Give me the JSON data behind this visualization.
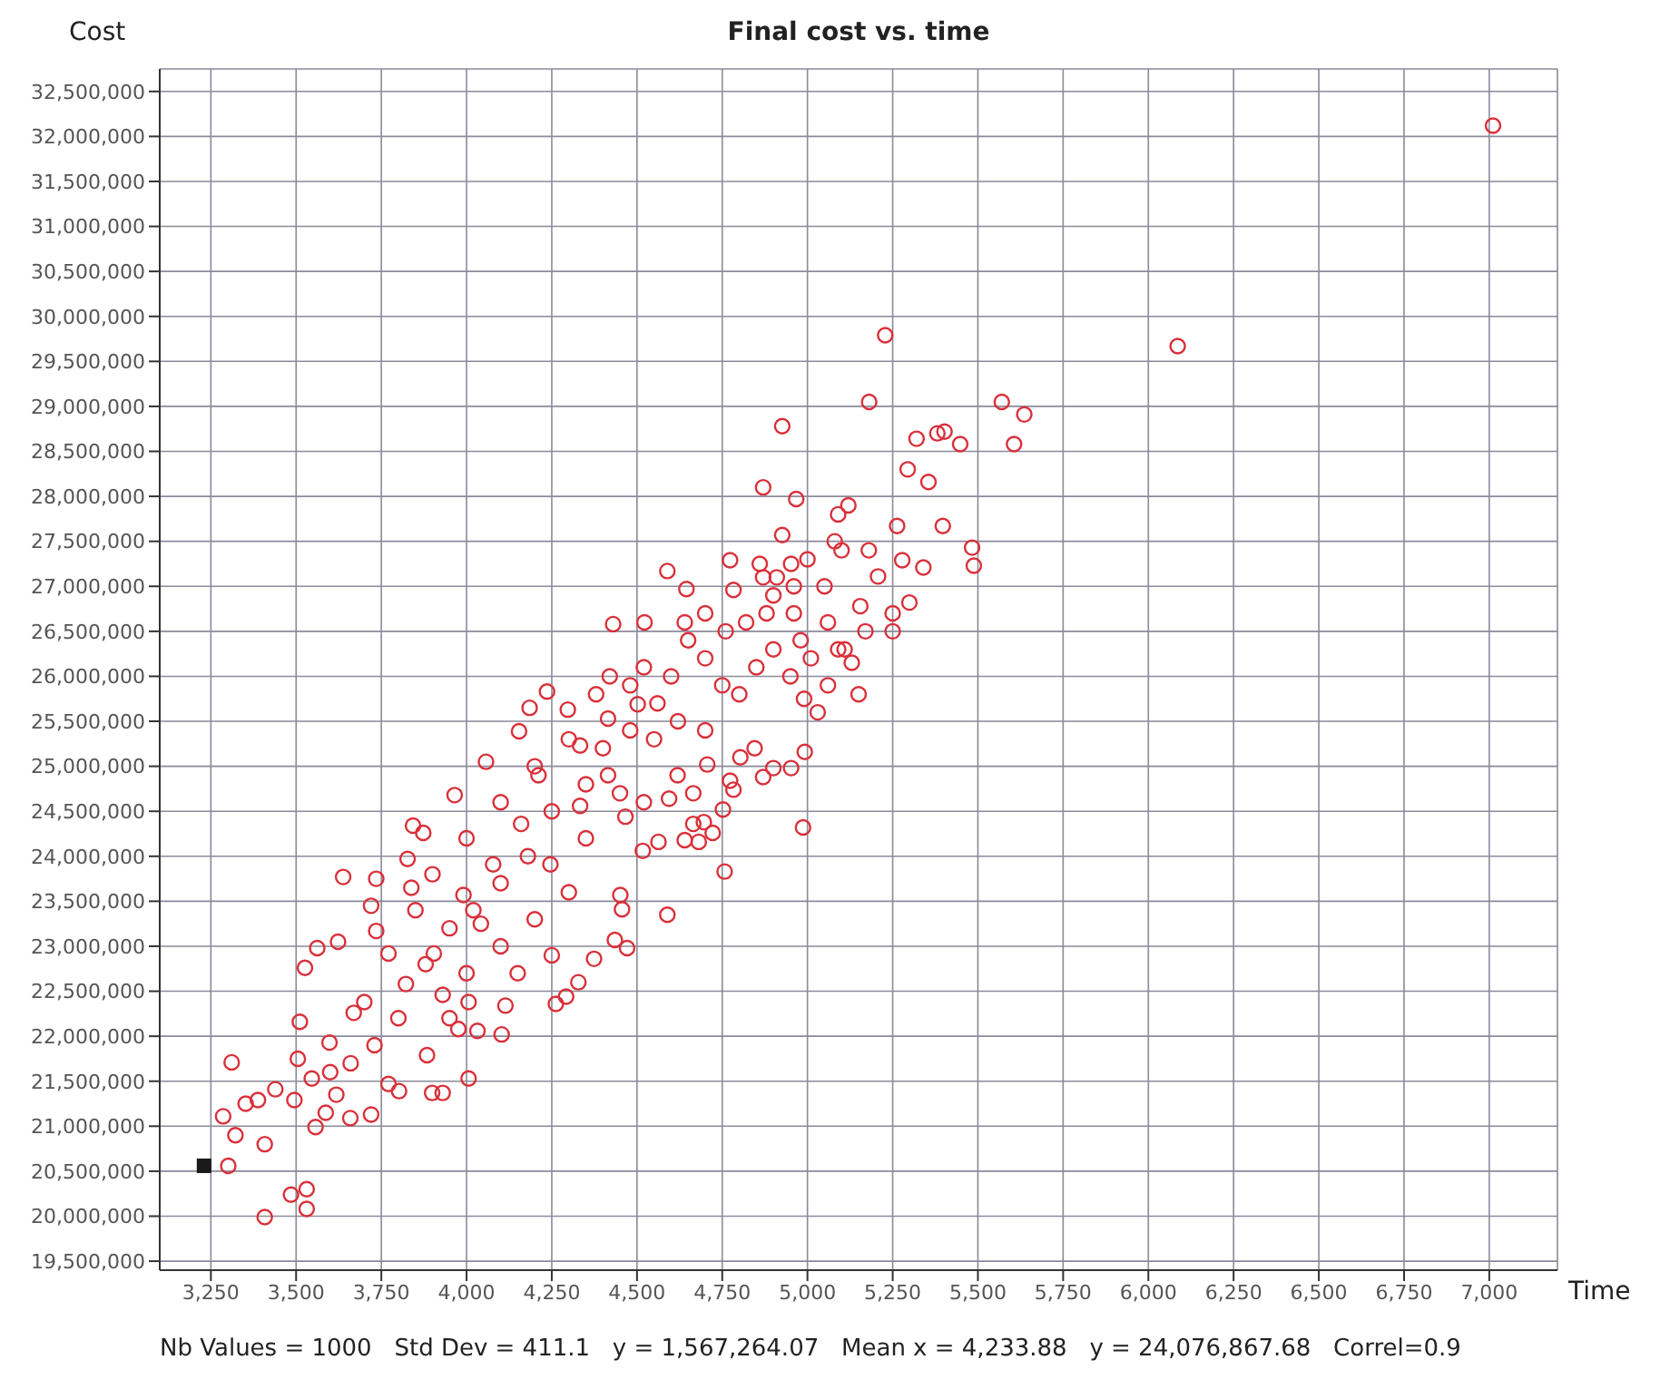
{
  "chart_data": {
    "type": "scatter",
    "title": "Final cost vs. time",
    "xlabel": "Time",
    "ylabel": "Cost",
    "annotations": [
      "Nb Values = 1000   Std Dev = 411.1   y = 1,567,264.07   Mean x = 4,233.88   y = 24,076,867.68   Correl=0.9"
    ],
    "xlim": [
      3100,
      7200
    ],
    "xticks": [
      {
        "value": 3250,
        "label": "3,250"
      },
      {
        "value": 3500,
        "label": "3,500"
      },
      {
        "value": 3750,
        "label": "3,750"
      },
      {
        "value": 4000,
        "label": "4,000"
      },
      {
        "value": 4250,
        "label": "4,250"
      },
      {
        "value": 4500,
        "label": "4,500"
      },
      {
        "value": 4750,
        "label": "4,750"
      },
      {
        "value": 5000,
        "label": "5,000"
      },
      {
        "value": 5250,
        "label": "5,250"
      },
      {
        "value": 5500,
        "label": "5,500"
      },
      {
        "value": 5750,
        "label": "5,750"
      },
      {
        "value": 6000,
        "label": "6,000"
      },
      {
        "value": 6250,
        "label": "6,250"
      },
      {
        "value": 6500,
        "label": "6,500"
      },
      {
        "value": 6750,
        "label": "6,750"
      },
      {
        "value": 7000,
        "label": "7,000"
      }
    ],
    "ylim": [
      19400000,
      32750000
    ],
    "yticks": [
      {
        "value": 19500000,
        "label": "19,500,000"
      },
      {
        "value": 20000000,
        "label": "20,000,000"
      },
      {
        "value": 20500000,
        "label": "20,500,000"
      },
      {
        "value": 21000000,
        "label": "21,000,000"
      },
      {
        "value": 21500000,
        "label": "21,500,000"
      },
      {
        "value": 22000000,
        "label": "22,000,000"
      },
      {
        "value": 22500000,
        "label": "22,500,000"
      },
      {
        "value": 23000000,
        "label": "23,000,000"
      },
      {
        "value": 23500000,
        "label": "23,500,000"
      },
      {
        "value": 24000000,
        "label": "24,000,000"
      },
      {
        "value": 24500000,
        "label": "24,500,000"
      },
      {
        "value": 25000000,
        "label": "25,000,000"
      },
      {
        "value": 25500000,
        "label": "25,500,000"
      },
      {
        "value": 26000000,
        "label": "26,000,000"
      },
      {
        "value": 26500000,
        "label": "26,500,000"
      },
      {
        "value": 27000000,
        "label": "27,000,000"
      },
      {
        "value": 27500000,
        "label": "27,500,000"
      },
      {
        "value": 28000000,
        "label": "28,000,000"
      },
      {
        "value": 28500000,
        "label": "28,500,000"
      },
      {
        "value": 29000000,
        "label": "29,000,000"
      },
      {
        "value": 29500000,
        "label": "29,500,000"
      },
      {
        "value": 30000000,
        "label": "30,000,000"
      },
      {
        "value": 30500000,
        "label": "30,500,000"
      },
      {
        "value": 31000000,
        "label": "31,000,000"
      },
      {
        "value": 31500000,
        "label": "31,500,000"
      },
      {
        "value": 32000000,
        "label": "32,000,000"
      },
      {
        "value": 32500000,
        "label": "32,500,000"
      }
    ],
    "grid": true,
    "series": [
      {
        "color": "#d9303a",
        "marker": "circle",
        "x": [
          7011,
          6086,
          5228,
          5181,
          5570,
          5636,
          5606,
          5320,
          5381,
          5402,
          5448,
          5294,
          5355,
          5263,
          5397,
          5483,
          5488,
          5278,
          5340,
          5207,
          5155,
          5299,
          5170,
          5109,
          4926,
          4870,
          4967,
          4926,
          4773,
          4589,
          4645,
          4430,
          4522,
          4783,
          4860,
          4952,
          3311,
          3286,
          3322,
          3301,
          3408,
          3408,
          3485,
          3531,
          3531,
          3352,
          3388,
          3439,
          3495,
          3505,
          3511,
          3526,
          3562,
          3623,
          3638,
          3735,
          3557,
          3587,
          3659,
          3720,
          3618,
          3546,
          3598,
          3669,
          3700,
          3771,
          3802,
          3899,
          3930,
          4006,
          3884,
          3976,
          4032,
          4103,
          4114,
          4006,
          3930,
          3822,
          3771,
          3735,
          3720,
          3838,
          3827,
          3873,
          3843,
          3965,
          4057,
          4154,
          4185,
          4236,
          4297,
          4415,
          4502,
          4042,
          3904,
          4246,
          4333,
          4415,
          4160,
          4078,
          3991,
          4211,
          4333,
          4466,
          4451,
          4262,
          4292,
          4328,
          4374,
          4435,
          4471,
          4589,
          4456,
          4757,
          4517,
          4563,
          4640,
          4681,
          4722,
          4696,
          4665,
          4987,
          4752,
          4783,
          4773,
          4870,
          4900,
          4952,
          4992,
          4845,
          4803,
          4706,
          4665,
          4594,
          4619,
          4980,
          5010,
          5060,
          5090,
          5130,
          5060,
          5030,
          4990,
          4950,
          4900,
          4850,
          4800,
          4750,
          4700,
          4650,
          4600,
          4560,
          4520,
          4480,
          4420,
          4380,
          4880,
          4820,
          4760,
          4700,
          4640,
          4910,
          4960,
          5050,
          5080,
          5100,
          5120,
          5090,
          5000,
          4900,
          4870,
          4960,
          5180,
          5250,
          5250,
          5150,
          4300,
          4400,
          4480,
          4550,
          4620,
          4700,
          4350,
          4450,
          4520,
          4250,
          4180,
          4100,
          4020,
          3950,
          3880,
          3800,
          3730,
          3660,
          3600,
          4350,
          4300,
          4200,
          4100,
          4000,
          3950,
          4150,
          4250,
          3900,
          3850,
          4000,
          4100,
          4200
        ],
        "values": [
          32120000,
          29670000,
          29790000,
          29050000,
          29050000,
          28910000,
          28580000,
          28640000,
          28700000,
          28720000,
          28580000,
          28300000,
          28160000,
          27670000,
          27670000,
          27430000,
          27230000,
          27290000,
          27210000,
          27110000,
          26780000,
          26820000,
          26500000,
          26300000,
          28780000,
          28100000,
          27970000,
          27570000,
          27290000,
          27170000,
          26970000,
          26580000,
          26600000,
          26960000,
          27250000,
          27250000,
          21710000,
          21110000,
          20900000,
          20560000,
          20800000,
          19990000,
          20240000,
          20300000,
          20080000,
          21250000,
          21290000,
          21410000,
          21290000,
          21750000,
          22160000,
          22760000,
          22980000,
          23050000,
          23770000,
          23750000,
          20990000,
          21150000,
          21090000,
          21130000,
          21350000,
          21530000,
          21930000,
          22260000,
          22380000,
          21470000,
          21390000,
          21370000,
          21370000,
          21530000,
          21790000,
          22080000,
          22060000,
          22020000,
          22340000,
          22380000,
          22460000,
          22580000,
          22920000,
          23170000,
          23450000,
          23650000,
          23970000,
          24260000,
          24340000,
          24680000,
          25050000,
          25390000,
          25650000,
          25830000,
          25630000,
          25530000,
          25690000,
          23250000,
          22920000,
          23910000,
          24560000,
          24900000,
          24360000,
          23910000,
          23570000,
          24900000,
          25230000,
          24440000,
          23570000,
          22360000,
          22440000,
          22600000,
          22860000,
          23070000,
          22980000,
          23350000,
          23410000,
          23830000,
          24060000,
          24160000,
          24180000,
          24160000,
          24260000,
          24380000,
          24360000,
          24320000,
          24520000,
          24740000,
          24840000,
          24880000,
          24980000,
          24980000,
          25160000,
          25200000,
          25100000,
          25020000,
          24700000,
          24640000,
          24900000,
          26400000,
          26200000,
          26600000,
          26300000,
          26150000,
          25900000,
          25600000,
          25750000,
          26000000,
          26300000,
          26100000,
          25800000,
          25900000,
          26200000,
          26400000,
          26000000,
          25700000,
          26100000,
          25900000,
          26000000,
          25800000,
          26700000,
          26600000,
          26500000,
          26700000,
          26600000,
          27100000,
          27000000,
          27000000,
          27500000,
          27400000,
          27900000,
          27800000,
          27300000,
          26900000,
          27100000,
          26700000,
          27400000,
          26700000,
          26500000,
          25800000,
          25300000,
          25200000,
          25400000,
          25300000,
          25500000,
          25400000,
          24800000,
          24700000,
          24600000,
          24500000,
          24000000,
          23700000,
          23400000,
          23200000,
          22800000,
          22200000,
          21900000,
          21700000,
          21600000,
          24200000,
          23600000,
          23300000,
          23000000,
          22700000,
          22200000,
          22700000,
          22900000,
          23800000,
          23400000,
          24200000,
          24600000,
          25000000
        ]
      },
      {
        "color": "#1a1a1a",
        "marker": "square",
        "x": [
          3230
        ],
        "values": [
          20560000
        ]
      }
    ]
  }
}
